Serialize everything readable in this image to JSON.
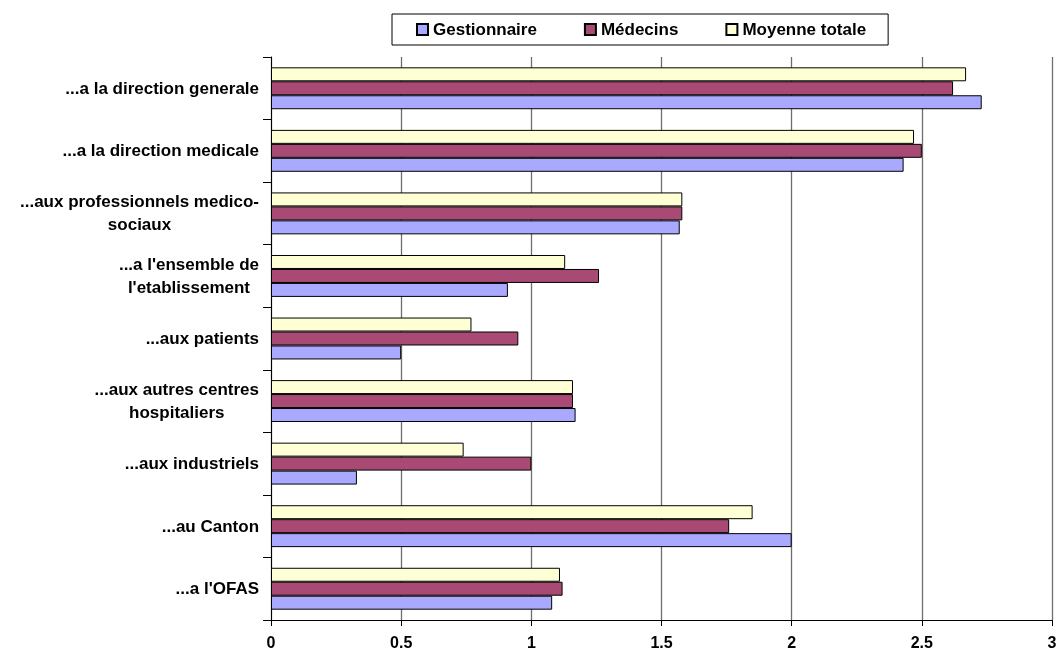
{
  "chart_data": {
    "type": "bar",
    "orientation": "horizontal",
    "categories": [
      "...a la direction generale",
      "...a la direction medicale",
      "...aux professionnels medico-sociaux",
      "...a l'ensemble de l'etablissement",
      "...aux patients",
      "...aux autres centres hospitaliers",
      "...aux industriels",
      "...au Canton",
      "...a l'OFAS"
    ],
    "series": [
      {
        "name": "Gestionnaire",
        "color": "#a9aaff",
        "values": [
          2.73,
          2.43,
          1.57,
          0.91,
          0.5,
          1.17,
          0.33,
          2.0,
          1.08
        ]
      },
      {
        "name": "Médecins",
        "color": "#a94a75",
        "values": [
          2.62,
          2.5,
          1.58,
          1.26,
          0.95,
          1.16,
          1.0,
          1.76,
          1.12
        ]
      },
      {
        "name": "Moyenne totale",
        "color": "#ffffd5",
        "values": [
          2.67,
          2.47,
          1.58,
          1.13,
          0.77,
          1.16,
          0.74,
          1.85,
          1.11
        ]
      }
    ],
    "xlim": [
      0,
      3
    ],
    "xticks": [
      0,
      0.5,
      1,
      1.5,
      2,
      2.5,
      3
    ],
    "grid": "x",
    "legend": "top"
  }
}
